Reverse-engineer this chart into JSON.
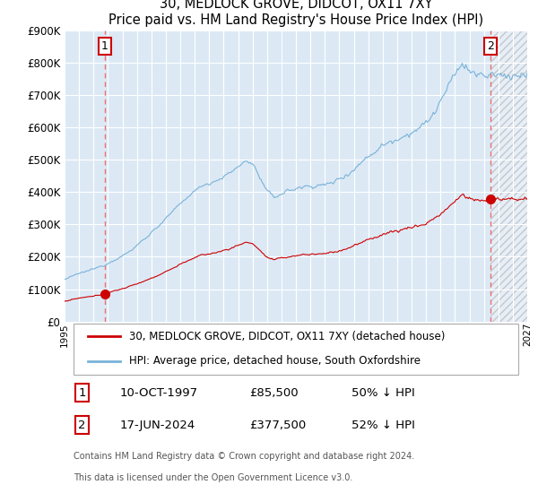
{
  "title": "30, MEDLOCK GROVE, DIDCOT, OX11 7XY",
  "subtitle": "Price paid vs. HM Land Registry's House Price Index (HPI)",
  "background_color": "#dce9f5",
  "future_bg_color": "#e8eef5",
  "hpi_color": "#7ab3d8",
  "property_color": "#cc0000",
  "vline_color": "#e87070",
  "x_start_year": 1995,
  "x_end_year": 2027,
  "y_max": 900000,
  "y_ticks": [
    0,
    100000,
    200000,
    300000,
    400000,
    500000,
    600000,
    700000,
    800000,
    900000
  ],
  "sale1_year": 1997.78,
  "sale1_price": 85500,
  "sale2_year": 2024.46,
  "sale2_price": 377500,
  "legend_property": "30, MEDLOCK GROVE, DIDCOT, OX11 7XY (detached house)",
  "legend_hpi": "HPI: Average price, detached house, South Oxfordshire",
  "note1_label": "1",
  "note1_date": "10-OCT-1997",
  "note1_price": "£85,500",
  "note1_pct": "50% ↓ HPI",
  "note2_label": "2",
  "note2_date": "17-JUN-2024",
  "note2_price": "£377,500",
  "note2_pct": "52% ↓ HPI",
  "footer_line1": "Contains HM Land Registry data © Crown copyright and database right 2024.",
  "footer_line2": "This data is licensed under the Open Government Licence v3.0."
}
